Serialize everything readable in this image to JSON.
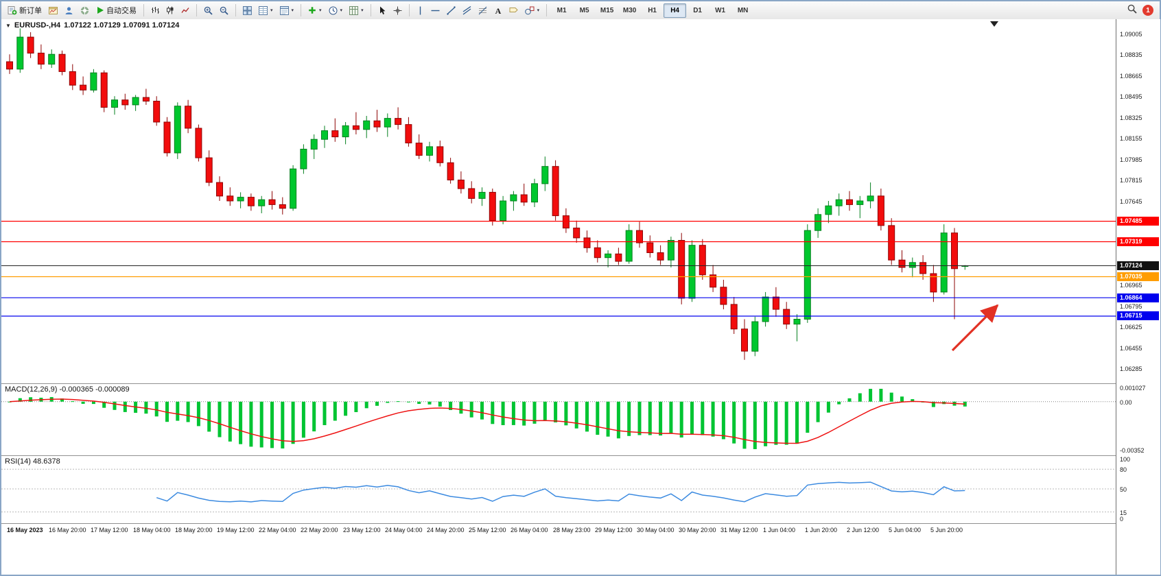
{
  "window": {
    "notification_count": "1"
  },
  "toolbar": {
    "groups": [
      {
        "items": [
          {
            "name": "new-order-button",
            "icon": "new-order-icon",
            "label": "新订单"
          },
          {
            "name": "chart-window-button",
            "icon": "chart-window-icon"
          },
          {
            "name": "profile-button",
            "icon": "profile-icon"
          },
          {
            "name": "community-button",
            "icon": "community-icon"
          },
          {
            "name": "auto-trading-button",
            "icon": "play-icon",
            "label": "自动交易"
          }
        ]
      },
      {
        "items": [
          {
            "name": "bar-chart-button",
            "icon": "bar-chart-icon"
          },
          {
            "name": "candlestick-button",
            "icon": "candlestick-icon"
          },
          {
            "name": "line-chart-button",
            "icon": "line-chart-icon"
          }
        ]
      },
      {
        "items": [
          {
            "name": "zoom-in-button",
            "icon": "zoom-in-icon"
          },
          {
            "name": "zoom-out-button",
            "icon": "zoom-out-icon"
          }
        ]
      },
      {
        "items": [
          {
            "name": "tile-windows-button",
            "icon": "tile-windows-icon"
          },
          {
            "name": "market-watch-button",
            "icon": "market-watch-icon",
            "dropdown": true
          },
          {
            "name": "data-window-button",
            "icon": "data-window-icon",
            "dropdown": true
          }
        ]
      },
      {
        "items": [
          {
            "name": "indicators-button",
            "icon": "indicator-plus-icon",
            "dropdown": true
          },
          {
            "name": "periods-button",
            "icon": "clock-icon",
            "dropdown": true
          },
          {
            "name": "templates-button",
            "icon": "template-icon",
            "dropdown": true
          }
        ]
      },
      {
        "items": [
          {
            "name": "cursor-button",
            "icon": "cursor-icon"
          },
          {
            "name": "crosshair-button",
            "icon": "crosshair-icon"
          }
        ]
      },
      {
        "items": [
          {
            "name": "vertical-line-button",
            "icon": "vline-icon"
          },
          {
            "name": "horizontal-line-button",
            "icon": "hline-icon"
          },
          {
            "name": "trendline-button",
            "icon": "trendline-icon"
          },
          {
            "name": "channel-button",
            "icon": "channel-icon"
          },
          {
            "name": "fibonacci-button",
            "icon": "fibonacci-icon"
          },
          {
            "name": "text-button",
            "icon": "text-icon"
          },
          {
            "name": "label-button",
            "icon": "label-icon"
          },
          {
            "name": "shapes-button",
            "icon": "shapes-icon",
            "dropdown": true
          }
        ]
      }
    ],
    "timeframes": [
      "M1",
      "M5",
      "M15",
      "M30",
      "H1",
      "H4",
      "D1",
      "W1",
      "MN"
    ],
    "active_timeframe": "H4"
  },
  "chart_data": {
    "type": "candlestick",
    "symbol": "EURUSD-",
    "period": "H4",
    "title": "EURUSD-,H4",
    "ohlc_label": "1.07122 1.07129 1.07091 1.07124",
    "price_max": 1.09125,
    "price_min": 1.06175,
    "colors": {
      "up": "#00c72e",
      "up_dark": "#05801f",
      "down": "#f20d0d",
      "down_dark": "#8e0404"
    },
    "price_ticks": [
      "1.09005",
      "1.08835",
      "1.08665",
      "1.08495",
      "1.08325",
      "1.08155",
      "1.07985",
      "1.07815",
      "1.07645",
      "1.06965",
      "1.06795",
      "1.06625",
      "1.06455",
      "1.06285"
    ],
    "levels": [
      {
        "price": 1.07485,
        "label": "1.07485",
        "color": "#ff0000",
        "type": "resistance"
      },
      {
        "price": 1.07319,
        "label": "1.07319",
        "color": "#ff0000",
        "type": "resistance"
      },
      {
        "price": 1.07035,
        "label": "1.07035",
        "color": "#ff9d00",
        "type": "pivot"
      },
      {
        "price": 1.06864,
        "label": "1.06864",
        "color": "#0000ee",
        "type": "support"
      },
      {
        "price": 1.06715,
        "label": "1.06715",
        "color": "#0000ee",
        "type": "support"
      }
    ],
    "current_price": {
      "value": 1.07124,
      "label": "1.07124",
      "color": "#111111"
    },
    "annotation_arrow": {
      "color": "#e23124",
      "points_to": "support line 1.06864"
    },
    "candles": [
      [
        1.0878,
        1.0884,
        1.0868,
        1.0872
      ],
      [
        1.0872,
        1.0905,
        1.0869,
        1.0898
      ],
      [
        1.0898,
        1.0902,
        1.0881,
        1.0885
      ],
      [
        1.0885,
        1.0892,
        1.0872,
        1.0876
      ],
      [
        1.0876,
        1.0888,
        1.0873,
        1.0884
      ],
      [
        1.0884,
        1.0887,
        1.0867,
        1.087
      ],
      [
        1.087,
        1.0876,
        1.0855,
        1.0859
      ],
      [
        1.0859,
        1.0866,
        1.0851,
        1.0855
      ],
      [
        1.0855,
        1.0872,
        1.0853,
        1.0869
      ],
      [
        1.0869,
        1.0871,
        1.0837,
        1.0841
      ],
      [
        1.0841,
        1.085,
        1.0835,
        1.0847
      ],
      [
        1.0847,
        1.0852,
        1.0839,
        1.0843
      ],
      [
        1.0843,
        1.0851,
        1.0838,
        1.0849
      ],
      [
        1.0849,
        1.0856,
        1.0843,
        1.0846
      ],
      [
        1.0846,
        1.085,
        1.0826,
        1.0829
      ],
      [
        1.0829,
        1.0833,
        1.0801,
        1.0804
      ],
      [
        1.0804,
        1.0845,
        1.0799,
        1.0842
      ],
      [
        1.0842,
        1.0847,
        1.082,
        1.0824
      ],
      [
        1.0824,
        1.0827,
        1.0797,
        1.08
      ],
      [
        1.08,
        1.0806,
        1.0777,
        1.078
      ],
      [
        1.078,
        1.0785,
        1.0765,
        1.0769
      ],
      [
        1.0769,
        1.0776,
        1.0761,
        1.0765
      ],
      [
        1.0765,
        1.0772,
        1.0759,
        1.0768
      ],
      [
        1.0768,
        1.0771,
        1.0757,
        1.0761
      ],
      [
        1.0761,
        1.0769,
        1.0755,
        1.0766
      ],
      [
        1.0766,
        1.0773,
        1.0758,
        1.0762
      ],
      [
        1.0762,
        1.0768,
        1.0754,
        1.0759
      ],
      [
        1.0759,
        1.0794,
        1.0757,
        1.0791
      ],
      [
        1.0791,
        1.0811,
        1.0787,
        1.0807
      ],
      [
        1.0807,
        1.0819,
        1.0799,
        1.0815
      ],
      [
        1.0815,
        1.0826,
        1.0808,
        1.0822
      ],
      [
        1.0822,
        1.0832,
        1.0813,
        1.0817
      ],
      [
        1.0817,
        1.0829,
        1.0811,
        1.0826
      ],
      [
        1.0826,
        1.0837,
        1.0819,
        1.0823
      ],
      [
        1.0823,
        1.0834,
        1.0816,
        1.083
      ],
      [
        1.083,
        1.0839,
        1.0821,
        1.0825
      ],
      [
        1.0825,
        1.0836,
        1.0817,
        1.0832
      ],
      [
        1.0832,
        1.0841,
        1.0823,
        1.0827
      ],
      [
        1.0827,
        1.0833,
        1.0809,
        1.0812
      ],
      [
        1.0812,
        1.0819,
        1.0799,
        1.0802
      ],
      [
        1.0802,
        1.0813,
        1.0797,
        1.0809
      ],
      [
        1.0809,
        1.0814,
        1.0793,
        1.0796
      ],
      [
        1.0796,
        1.08,
        1.0779,
        1.0782
      ],
      [
        1.0782,
        1.0789,
        1.0771,
        1.0775
      ],
      [
        1.0775,
        1.0781,
        1.0763,
        1.0767
      ],
      [
        1.0767,
        1.0776,
        1.0761,
        1.0772
      ],
      [
        1.0772,
        1.0775,
        1.0745,
        1.0749
      ],
      [
        1.0749,
        1.0769,
        1.0746,
        1.0765
      ],
      [
        1.0765,
        1.0773,
        1.0757,
        1.077
      ],
      [
        1.077,
        1.0779,
        1.0761,
        1.0764
      ],
      [
        1.0764,
        1.0783,
        1.076,
        1.0779
      ],
      [
        1.0779,
        1.0801,
        1.0773,
        1.0793
      ],
      [
        1.0793,
        1.0798,
        1.0749,
        1.0753
      ],
      [
        1.0753,
        1.0759,
        1.0739,
        1.0743
      ],
      [
        1.0743,
        1.0749,
        1.0731,
        1.0735
      ],
      [
        1.0735,
        1.0741,
        1.0723,
        1.0727
      ],
      [
        1.0727,
        1.0733,
        1.0715,
        1.0719
      ],
      [
        1.0719,
        1.0725,
        1.0711,
        1.0722
      ],
      [
        1.0722,
        1.0727,
        1.0713,
        1.0716
      ],
      [
        1.0716,
        1.0746,
        1.0714,
        1.0741
      ],
      [
        1.0741,
        1.0748,
        1.0727,
        1.0731
      ],
      [
        1.0731,
        1.0737,
        1.0719,
        1.0723
      ],
      [
        1.0723,
        1.0729,
        1.0713,
        1.0717
      ],
      [
        1.0717,
        1.0736,
        1.0711,
        1.0733
      ],
      [
        1.0733,
        1.0739,
        1.0681,
        1.0686
      ],
      [
        1.0686,
        1.0733,
        1.0683,
        1.0729
      ],
      [
        1.0729,
        1.0734,
        1.0701,
        1.0705
      ],
      [
        1.0705,
        1.0713,
        1.0691,
        1.0695
      ],
      [
        1.0695,
        1.0701,
        1.0677,
        1.0681
      ],
      [
        1.0681,
        1.0687,
        1.0657,
        1.0661
      ],
      [
        1.0661,
        1.0669,
        1.0636,
        1.0643
      ],
      [
        1.0643,
        1.0671,
        1.0639,
        1.0667
      ],
      [
        1.0667,
        1.0691,
        1.0663,
        1.0687
      ],
      [
        1.0687,
        1.0695,
        1.0671,
        1.0677
      ],
      [
        1.0677,
        1.0683,
        1.0661,
        1.0665
      ],
      [
        1.0665,
        1.0673,
        1.0651,
        1.0669
      ],
      [
        1.0669,
        1.0746,
        1.0666,
        1.0741
      ],
      [
        1.0741,
        1.0759,
        1.0735,
        1.0754
      ],
      [
        1.0754,
        1.0765,
        1.0747,
        1.0761
      ],
      [
        1.0761,
        1.0771,
        1.0753,
        1.0766
      ],
      [
        1.0766,
        1.0773,
        1.0757,
        1.0762
      ],
      [
        1.0762,
        1.0769,
        1.0751,
        1.0765
      ],
      [
        1.0765,
        1.078,
        1.0759,
        1.0769
      ],
      [
        1.0769,
        1.0775,
        1.0741,
        1.0745
      ],
      [
        1.0745,
        1.0751,
        1.0713,
        1.0717
      ],
      [
        1.0717,
        1.0725,
        1.0707,
        1.0711
      ],
      [
        1.0711,
        1.0719,
        1.0703,
        1.0715
      ],
      [
        1.0715,
        1.0721,
        1.0701,
        1.0706
      ],
      [
        1.0706,
        1.0713,
        1.0683,
        1.0691
      ],
      [
        1.0691,
        1.0746,
        1.0689,
        1.0739
      ],
      [
        1.0739,
        1.0743,
        1.0669,
        1.071
      ],
      [
        1.07122,
        1.07129,
        1.07091,
        1.07124
      ]
    ],
    "time_labels": [
      "16 May 2023",
      "16 May 20:00",
      "17 May 12:00",
      "18 May 04:00",
      "18 May 20:00",
      "19 May 12:00",
      "22 May 04:00",
      "22 May 20:00",
      "23 May 12:00",
      "24 May 04:00",
      "24 May 20:00",
      "25 May 12:00",
      "26 May 04:00",
      "28 May 23:00",
      "29 May 12:00",
      "30 May 04:00",
      "30 May 20:00",
      "31 May 12:00",
      "1 Jun 04:00",
      "1 Jun 20:00",
      "2 Jun 12:00",
      "5 Jun 04:00",
      "5 Jun 20:00"
    ],
    "macd": {
      "label": "MACD(12,26,9) -0.000365 -0.000089",
      "params": [
        12,
        26,
        9
      ],
      "values": [
        -0.000365,
        -8.9e-05
      ],
      "axis_labels": [
        "0.001027",
        "0.00",
        "-0.00352"
      ],
      "histogram_color": "#00c432",
      "signal_color": "#ee1111"
    },
    "rsi": {
      "label": "RSI(14) 48.6378",
      "period": 14,
      "value": 48.6378,
      "levels": [
        80,
        50,
        15
      ],
      "axis_labels": [
        "100",
        "80",
        "50",
        "15",
        "0"
      ],
      "line_color": "#3b8ae0",
      "level_color": "#b8b8b8"
    }
  }
}
